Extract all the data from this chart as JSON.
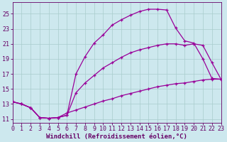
{
  "xlabel": "Windchill (Refroidissement éolien,°C)",
  "bg_color": "#cde8ee",
  "line_color": "#990099",
  "grid_color": "#a8cccc",
  "xlim": [
    0,
    23
  ],
  "ylim": [
    10.5,
    26.5
  ],
  "yticks": [
    11,
    13,
    15,
    17,
    19,
    21,
    23,
    25
  ],
  "xticks": [
    0,
    1,
    2,
    3,
    4,
    5,
    6,
    7,
    8,
    9,
    10,
    11,
    12,
    13,
    14,
    15,
    16,
    17,
    18,
    19,
    20,
    21,
    22,
    23
  ],
  "line1_x": [
    0,
    1,
    2,
    3,
    4,
    5,
    6,
    7,
    8,
    9,
    10,
    11,
    12,
    13,
    14,
    15,
    16,
    17,
    18,
    19,
    20,
    21,
    22,
    23
  ],
  "line1_y": [
    13.3,
    13.0,
    12.5,
    11.2,
    11.1,
    11.2,
    11.5,
    17.0,
    19.3,
    21.1,
    22.2,
    23.5,
    24.2,
    24.8,
    25.3,
    25.6,
    25.6,
    25.5,
    23.1,
    21.4,
    21.1,
    19.0,
    16.4,
    16.3
  ],
  "line2_x": [
    0,
    1,
    2,
    3,
    4,
    5,
    6,
    7,
    8,
    9,
    10,
    11,
    12,
    13,
    14,
    15,
    16,
    17,
    18,
    19,
    20,
    21,
    22,
    23
  ],
  "line2_y": [
    13.3,
    13.0,
    12.5,
    11.2,
    11.1,
    11.2,
    11.5,
    14.5,
    15.8,
    16.8,
    17.8,
    18.5,
    19.2,
    19.8,
    20.2,
    20.5,
    20.8,
    21.0,
    21.0,
    20.8,
    21.0,
    20.8,
    18.5,
    16.3
  ],
  "line3_x": [
    0,
    1,
    2,
    3,
    4,
    5,
    6,
    7,
    8,
    9,
    10,
    11,
    12,
    13,
    14,
    15,
    16,
    17,
    18,
    19,
    20,
    21,
    22,
    23
  ],
  "line3_y": [
    13.3,
    13.0,
    12.5,
    11.2,
    11.1,
    11.2,
    11.8,
    12.2,
    12.6,
    13.0,
    13.4,
    13.7,
    14.1,
    14.4,
    14.7,
    15.0,
    15.3,
    15.5,
    15.7,
    15.8,
    16.0,
    16.2,
    16.3,
    16.3
  ],
  "xlabel_fontsize": 6.5,
  "tick_fontsize": 6,
  "tick_color": "#660066",
  "spine_color": "#660066"
}
